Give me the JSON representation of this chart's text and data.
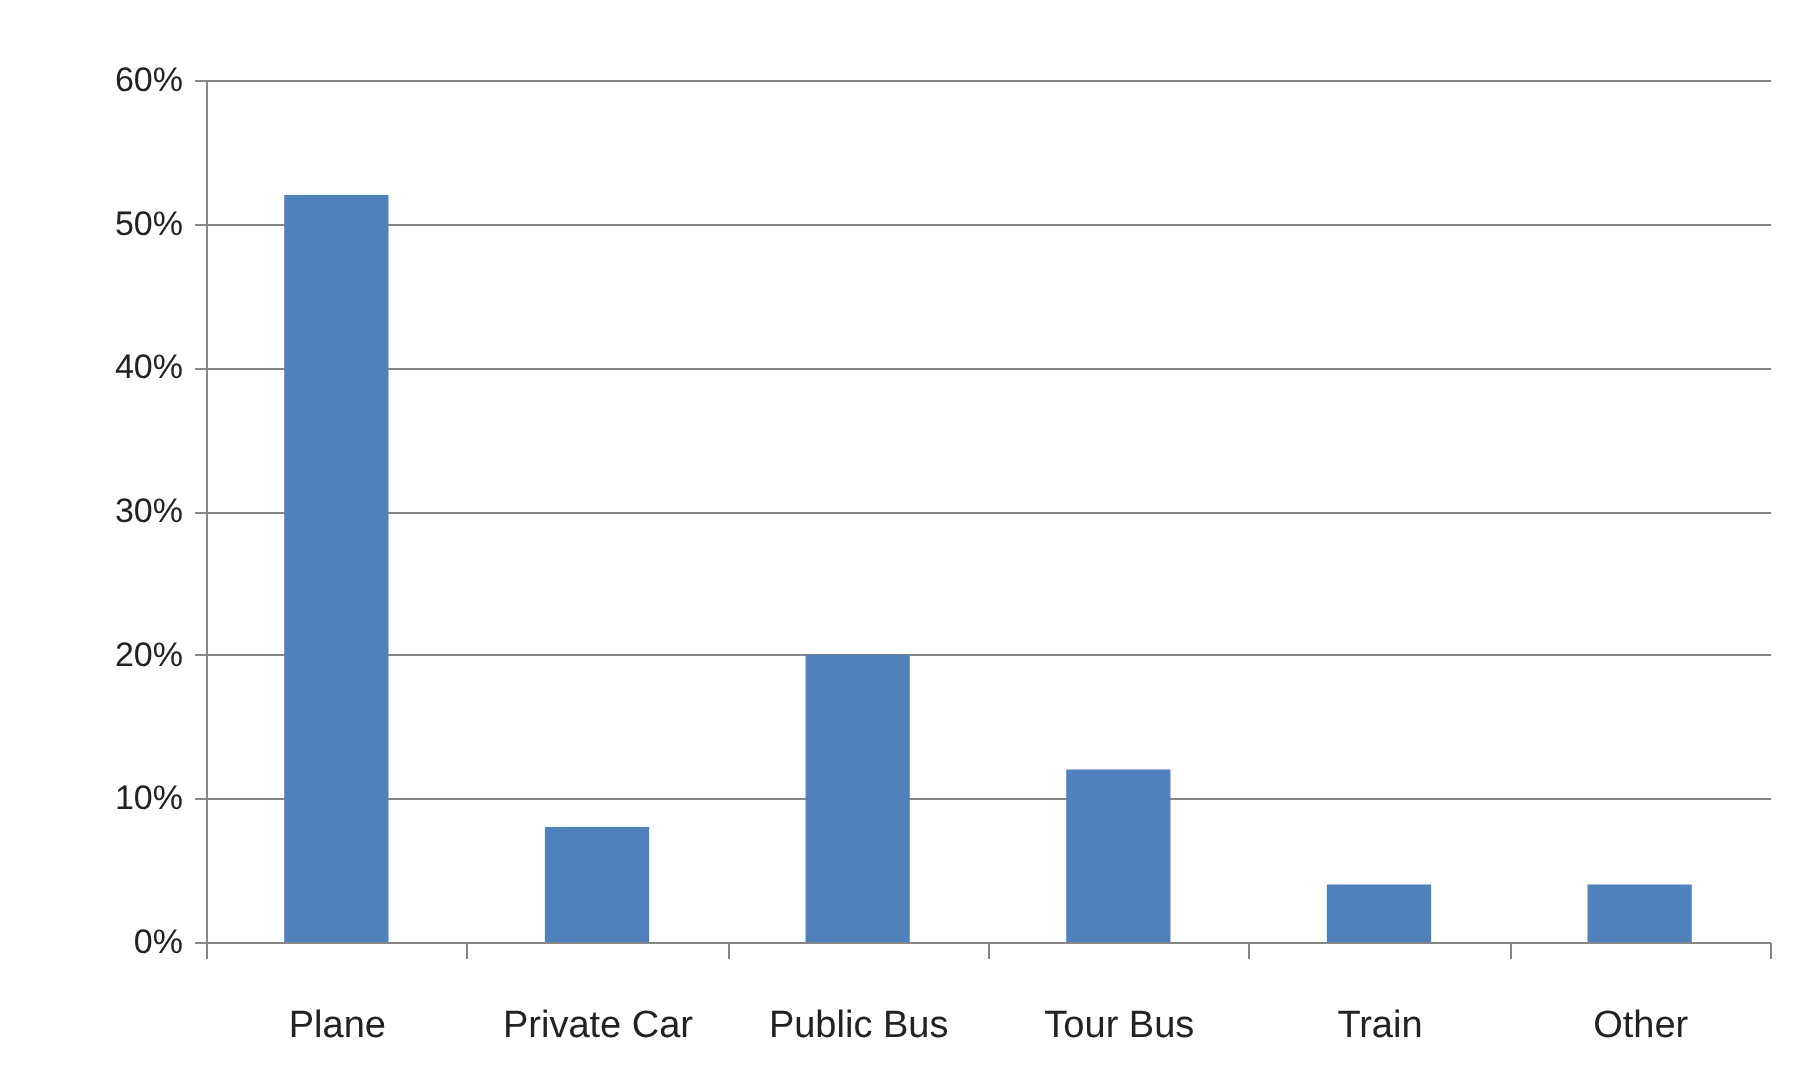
{
  "chart_data": {
    "type": "bar",
    "categories": [
      "Plane",
      "Private Car",
      "Public Bus",
      "Tour Bus",
      "Train",
      "Other"
    ],
    "values": [
      52,
      8,
      20,
      12,
      4,
      4
    ],
    "color": "#4f81bd",
    "ylim": [
      0,
      60
    ],
    "yticks": [
      {
        "value": 0,
        "label": "0%"
      },
      {
        "value": 10,
        "label": "10%"
      },
      {
        "value": 20,
        "label": "20%"
      },
      {
        "value": 30,
        "label": "30%"
      },
      {
        "value": 40,
        "label": "40%"
      },
      {
        "value": 50,
        "label": "50%"
      },
      {
        "value": 60,
        "label": "60%"
      }
    ],
    "grid": "y"
  }
}
